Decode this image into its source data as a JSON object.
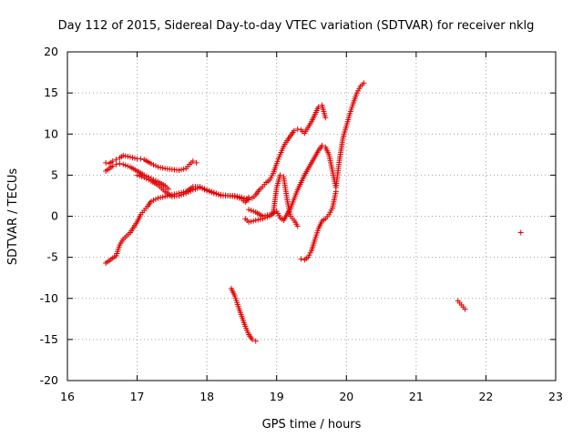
{
  "chart_data": {
    "type": "scatter",
    "title": "Day 112 of 2015, Sidereal Day-to-day VTEC variation (SDTVAR) for receiver nklg",
    "xlabel": "GPS time / hours",
    "ylabel": "SDTVAR / TECUs",
    "xlim": [
      16,
      23
    ],
    "ylim": [
      -20,
      20
    ],
    "xticks": [
      "16",
      "17",
      "18",
      "19",
      "20",
      "21",
      "22",
      "23"
    ],
    "yticks": [
      "20",
      "15",
      "10",
      "5",
      "0",
      "-5",
      "-10",
      "-15",
      "-20"
    ],
    "grid": true,
    "marker": "plus",
    "color": "#e00000",
    "series": [
      {
        "x": [
          16.55,
          16.6,
          16.65,
          16.7,
          16.75,
          16.8,
          16.9,
          17.0,
          17.05,
          17.1,
          17.2,
          17.3,
          17.4,
          17.5,
          17.6,
          17.7,
          17.75,
          17.8,
          17.85
        ],
        "y": [
          6.5,
          6.4,
          6.7,
          6.9,
          7.1,
          7.4,
          7.2,
          7.0,
          7.0,
          6.9,
          6.4,
          6.0,
          5.8,
          5.7,
          5.6,
          5.8,
          6.3,
          6.7,
          6.5
        ]
      },
      {
        "x": [
          16.55,
          16.6,
          16.65,
          16.7,
          16.75,
          16.8,
          16.9,
          17.0,
          17.1,
          17.2,
          17.3,
          17.4,
          17.45
        ],
        "y": [
          5.5,
          5.8,
          6.1,
          6.3,
          6.4,
          6.3,
          6.0,
          5.5,
          5.0,
          4.6,
          4.2,
          3.7,
          3.3
        ]
      },
      {
        "x": [
          16.55,
          16.6,
          16.7,
          16.75,
          16.8,
          16.9,
          17.0,
          17.05,
          17.1,
          17.15,
          17.2,
          17.3,
          17.4,
          17.5,
          17.6,
          17.7,
          17.8,
          17.9,
          18.0,
          18.1,
          18.2,
          18.3,
          18.4,
          18.5,
          18.6,
          18.65,
          18.7,
          18.75,
          18.8,
          18.85,
          18.9,
          18.95,
          19.0,
          19.05,
          19.1,
          19.15,
          19.2,
          19.25,
          19.3,
          19.35,
          19.4,
          19.45,
          19.5,
          19.55,
          19.6,
          19.65,
          19.7
        ],
        "y": [
          -5.7,
          -5.4,
          -4.8,
          -3.5,
          -2.8,
          -2.0,
          -0.7,
          0.2,
          0.7,
          1.2,
          1.8,
          2.2,
          2.4,
          2.6,
          2.8,
          3.0,
          3.6,
          3.6,
          3.2,
          2.9,
          2.5,
          2.5,
          2.5,
          2.3,
          2.0,
          2.2,
          2.6,
          3.2,
          3.6,
          4.1,
          4.4,
          5.2,
          6.4,
          7.5,
          8.5,
          9.2,
          9.8,
          10.4,
          10.6,
          10.5,
          10.1,
          10.8,
          11.5,
          12.4,
          13.3,
          13.5,
          12.0
        ]
      },
      {
        "x": [
          17.0,
          17.1,
          17.2,
          17.3,
          17.4,
          17.5,
          17.6,
          17.7,
          17.8,
          17.9,
          18.0,
          18.1,
          18.2,
          18.3,
          18.4,
          18.5,
          18.55,
          18.6
        ],
        "y": [
          5.0,
          4.7,
          4.3,
          3.8,
          3.0,
          2.4,
          2.5,
          2.8,
          3.2,
          3.5,
          3.1,
          2.8,
          2.6,
          2.5,
          2.4,
          2.1,
          1.7,
          2.3
        ]
      },
      {
        "x": [
          18.55,
          18.6,
          18.7,
          18.8,
          18.9,
          18.95,
          19.0,
          19.05,
          19.1,
          19.15,
          19.2,
          19.25,
          19.3
        ],
        "y": [
          -0.3,
          -0.7,
          -0.5,
          -0.3,
          0.0,
          0.3,
          3.5,
          5.0,
          4.8,
          2.0,
          0.0,
          -0.5,
          -1.2
        ]
      },
      {
        "x": [
          18.6,
          18.7,
          18.8,
          18.9,
          19.0,
          19.05,
          19.1,
          19.2,
          19.3,
          19.4,
          19.5,
          19.6,
          19.65,
          19.7,
          19.75,
          19.8,
          19.85,
          19.9,
          19.95,
          20.0,
          20.05,
          20.1,
          20.15,
          20.2,
          20.25
        ],
        "y": [
          0.8,
          0.5,
          0.0,
          0.2,
          0.6,
          -0.2,
          -0.5,
          1.0,
          3.2,
          5.0,
          6.5,
          8.0,
          8.6,
          8.4,
          7.5,
          5.5,
          3.5,
          6.8,
          9.5,
          11.0,
          12.5,
          13.8,
          15.0,
          15.8,
          16.2
        ]
      },
      {
        "x": [
          19.35,
          19.4,
          19.45,
          19.5,
          19.55,
          19.6,
          19.65,
          19.7,
          19.75,
          19.8,
          19.85
        ],
        "y": [
          -5.2,
          -5.3,
          -5.0,
          -4.2,
          -2.8,
          -1.5,
          -0.6,
          -0.3,
          0.2,
          1.0,
          3.0
        ]
      },
      {
        "x": [
          18.35,
          18.4,
          18.45,
          18.5,
          18.55,
          18.6,
          18.65,
          18.7
        ],
        "y": [
          -8.8,
          -9.7,
          -11.0,
          -12.2,
          -13.4,
          -14.4,
          -15.0,
          -15.2
        ]
      },
      {
        "x": [
          21.6,
          21.65,
          21.7
        ],
        "y": [
          -10.3,
          -10.8,
          -11.3
        ]
      },
      {
        "x": [
          22.5
        ],
        "y": [
          -2.0
        ]
      }
    ]
  }
}
